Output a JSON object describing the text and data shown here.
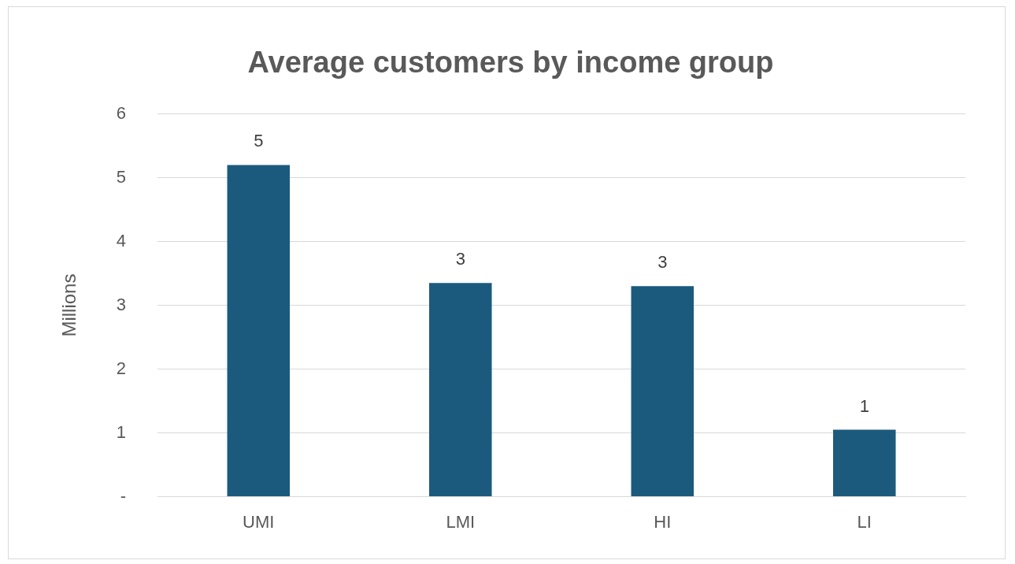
{
  "chart_data": {
    "type": "bar",
    "title": "Average customers by income group",
    "ylabel": "Millions",
    "categories": [
      "UMI",
      "LMI",
      "HI",
      "LI"
    ],
    "values": [
      5.2,
      3.35,
      3.3,
      1.05
    ],
    "value_labels": [
      "5",
      "3",
      "3",
      "1"
    ],
    "color": "#1b5a7d",
    "ylim": [
      0,
      6
    ],
    "yticks": [
      {
        "value": 0,
        "label": "-"
      },
      1,
      2,
      3,
      4,
      5,
      6
    ],
    "grid": "y",
    "legend": false
  }
}
